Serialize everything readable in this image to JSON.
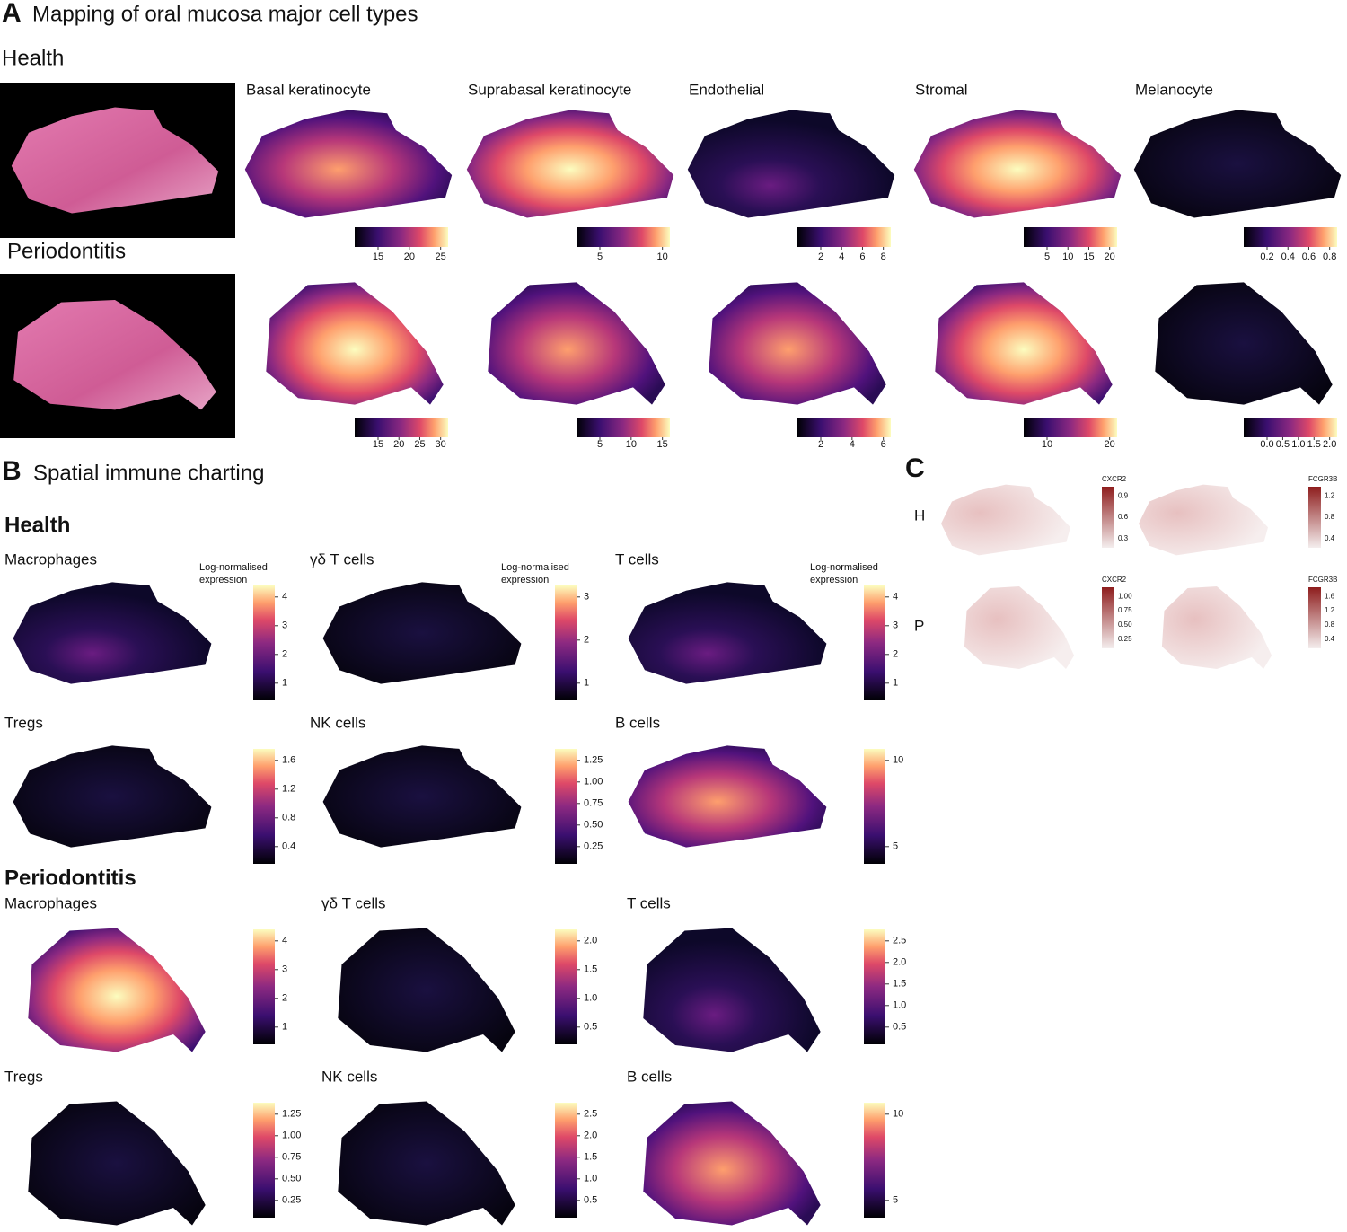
{
  "panel_a": {
    "letter": "A",
    "title": "Mapping of oral mucosa major cell types",
    "cell_types": [
      "Basal keratinocyte",
      "Suprabasal keratinocyte",
      "Endothelial",
      "Stromal",
      "Melanocyte"
    ],
    "conditions": [
      {
        "name": "Health",
        "colorbar_ticks": [
          [
            "15",
            "20",
            "25"
          ],
          [
            "5",
            "10"
          ],
          [
            "2",
            "4",
            "6",
            "8"
          ],
          [
            "5",
            "10",
            "15",
            "20"
          ],
          [
            "0.2",
            "0.4",
            "0.6",
            "0.8"
          ]
        ]
      },
      {
        "name": "Periodontitis",
        "colorbar_ticks": [
          [
            "15",
            "20",
            "25",
            "30"
          ],
          [
            "5",
            "10",
            "15"
          ],
          [
            "2",
            "4",
            "6"
          ],
          [
            "10",
            "20"
          ],
          [
            "0.0",
            "0.5",
            "1.0",
            "1.5",
            "2.0"
          ]
        ]
      }
    ]
  },
  "panel_b": {
    "letter": "B",
    "title": "Spatial immune charting",
    "legend_title_lines": [
      "Log-normalised",
      "expression"
    ],
    "conditions": [
      {
        "name": "Health",
        "maps": [
          {
            "label": "Macrophages",
            "colorbar_ticks": [
              "4",
              "3",
              "2",
              "1"
            ]
          },
          {
            "label": "γδ T cells",
            "colorbar_ticks": [
              "3",
              "2",
              "1"
            ]
          },
          {
            "label": "T cells",
            "colorbar_ticks": [
              "4",
              "3",
              "2",
              "1"
            ]
          },
          {
            "label": "Tregs",
            "colorbar_ticks": [
              "1.6",
              "1.2",
              "0.8",
              "0.4"
            ]
          },
          {
            "label": "NK cells",
            "colorbar_ticks": [
              "1.25",
              "1.00",
              "0.75",
              "0.50",
              "0.25"
            ]
          },
          {
            "label": "B cells",
            "colorbar_ticks": [
              "10",
              "5"
            ]
          }
        ]
      },
      {
        "name": "Periodontitis",
        "maps": [
          {
            "label": "Macrophages",
            "colorbar_ticks": [
              "4",
              "3",
              "2",
              "1"
            ]
          },
          {
            "label": "γδ T cells",
            "colorbar_ticks": [
              "2.0",
              "1.5",
              "1.0",
              "0.5"
            ]
          },
          {
            "label": "T cells",
            "colorbar_ticks": [
              "2.5",
              "2.0",
              "1.5",
              "1.0",
              "0.5"
            ]
          },
          {
            "label": "Tregs",
            "colorbar_ticks": [
              "1.25",
              "1.00",
              "0.75",
              "0.50",
              "0.25"
            ]
          },
          {
            "label": "NK cells",
            "colorbar_ticks": [
              "2.5",
              "2.0",
              "1.5",
              "1.0",
              "0.5"
            ]
          },
          {
            "label": "B cells",
            "colorbar_ticks": [
              "10",
              "5"
            ]
          }
        ]
      }
    ]
  },
  "panel_c": {
    "letter": "C",
    "rows": [
      {
        "label": "H",
        "maps": [
          {
            "gene": "CXCR2",
            "colorbar_ticks": [
              "0.9",
              "0.6",
              "0.3"
            ]
          },
          {
            "gene": "FCGR3B",
            "colorbar_ticks": [
              "1.2",
              "0.8",
              "0.4"
            ]
          }
        ]
      },
      {
        "label": "P",
        "maps": [
          {
            "gene": "CXCR2",
            "colorbar_ticks": [
              "1.00",
              "0.75",
              "0.50",
              "0.25"
            ]
          },
          {
            "gene": "FCGR3B",
            "colorbar_ticks": [
              "1.6",
              "1.2",
              "0.8",
              "0.4"
            ]
          }
        ]
      }
    ]
  }
}
